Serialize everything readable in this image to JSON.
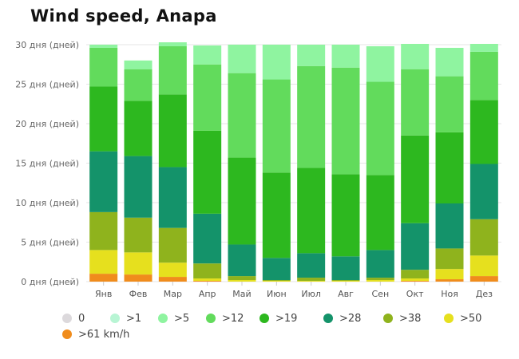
{
  "chart_data": {
    "type": "bar",
    "stacked": true,
    "title": "Wind speed, Anapa",
    "xlabel": "",
    "ylabel": "",
    "ylim": [
      0,
      30
    ],
    "yticks": [
      {
        "value": 0,
        "label": "0 дня (дней)"
      },
      {
        "value": 5,
        "label": "5 дня (дней)"
      },
      {
        "value": 10,
        "label": "10 дня (дней)"
      },
      {
        "value": 15,
        "label": "15 дня (дней)"
      },
      {
        "value": 20,
        "label": "20 дня (дней)"
      },
      {
        "value": 25,
        "label": "25 дня (дней)"
      },
      {
        "value": 30,
        "label": "30 дня (дней)"
      }
    ],
    "grid": true,
    "legend_position": "bottom",
    "categories": [
      "Янв",
      "Фев",
      "Мар",
      "Апр",
      "Май",
      "Июн",
      "Июл",
      "Авг",
      "Сен",
      "Окт",
      "Ноя",
      "Дез"
    ],
    "series": [
      {
        "name": ">61 km/h",
        "color": "#f08c1c",
        "values": [
          1.0,
          0.9,
          0.6,
          0.1,
          0.0,
          0.0,
          0.0,
          0.0,
          0.0,
          0.1,
          0.3,
          0.7
        ]
      },
      {
        "name": ">50",
        "color": "#e6e01e",
        "values": [
          3.0,
          2.8,
          1.8,
          0.3,
          0.2,
          0.1,
          0.1,
          0.1,
          0.2,
          0.3,
          1.3,
          2.6
        ]
      },
      {
        "name": ">38",
        "color": "#8fb31d",
        "values": [
          4.8,
          4.4,
          4.4,
          1.9,
          0.5,
          0.1,
          0.4,
          0.1,
          0.3,
          1.1,
          2.6,
          4.6
        ]
      },
      {
        "name": ">28",
        "color": "#14936a",
        "values": [
          7.7,
          7.8,
          7.7,
          6.3,
          4.0,
          2.8,
          3.1,
          3.0,
          3.5,
          5.9,
          5.7,
          7.0
        ]
      },
      {
        "name": ">19",
        "color": "#2db81f",
        "values": [
          8.2,
          7.0,
          9.2,
          10.5,
          11.0,
          10.8,
          10.8,
          10.4,
          9.5,
          11.1,
          9.0,
          8.1
        ]
      },
      {
        "name": ">12",
        "color": "#62db5c",
        "values": [
          4.9,
          4.0,
          6.1,
          8.4,
          10.7,
          11.8,
          12.9,
          13.5,
          11.8,
          8.4,
          7.1,
          6.1
        ]
      },
      {
        "name": ">5",
        "color": "#8ff4a0",
        "values": [
          0.4,
          1.1,
          0.5,
          2.4,
          3.6,
          4.4,
          2.7,
          2.9,
          4.5,
          3.2,
          3.6,
          1.0
        ]
      },
      {
        "name": ">1",
        "color": "#a7f8c0",
        "values": [
          0.0,
          0.0,
          0.0,
          0.0,
          0.0,
          0.0,
          0.0,
          0.0,
          0.0,
          0.0,
          0.0,
          0.0
        ]
      },
      {
        "name": "0",
        "color": "#dcdcdc",
        "values": [
          0.0,
          0.0,
          0.0,
          0.0,
          0.0,
          0.0,
          0.0,
          0.0,
          0.0,
          0.0,
          0.0,
          0.0
        ]
      }
    ]
  },
  "legend": [
    {
      "label": "0",
      "color": "#dcd9dc"
    },
    {
      "label": ">1",
      "color": "#b8f5d4"
    },
    {
      "label": ">5",
      "color": "#8ff4a0"
    },
    {
      "label": ">12",
      "color": "#62db5c"
    },
    {
      "label": ">19",
      "color": "#2db81f"
    },
    {
      "label": ">28",
      "color": "#14936a"
    },
    {
      "label": ">38",
      "color": "#8fb31d"
    },
    {
      "label": ">50",
      "color": "#e6e01e"
    },
    {
      "label": ">61 km/h",
      "color": "#f08c1c"
    }
  ]
}
